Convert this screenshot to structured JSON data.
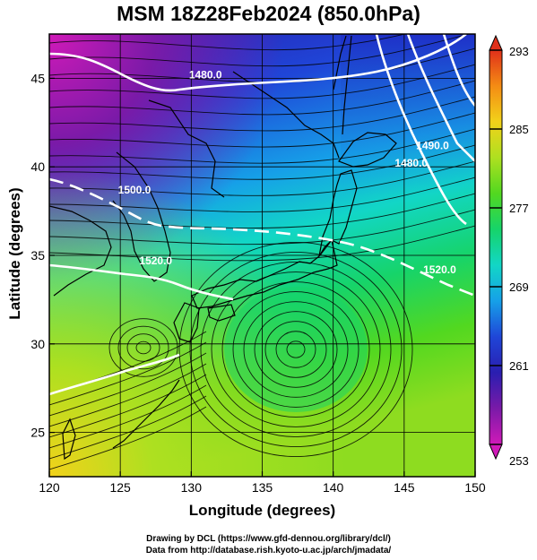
{
  "title": "MSM 18Z28Feb2024 (850.0hPa)",
  "x_axis": {
    "label": "Longitude (degrees)",
    "range": [
      120,
      150
    ],
    "ticks": [
      120,
      125,
      130,
      135,
      140,
      145,
      150
    ]
  },
  "y_axis": {
    "label": "Latitude  (degrees)",
    "range": [
      22.5,
      47.5
    ],
    "ticks": [
      25,
      30,
      35,
      40,
      45
    ]
  },
  "colorbar": {
    "range": [
      253,
      293
    ],
    "ticks": [
      253,
      261,
      269,
      277,
      285,
      293
    ],
    "colors": [
      "#d01ab8",
      "#7a1aa8",
      "#2a1eb0",
      "#1f46d8",
      "#16a0e8",
      "#12d6c6",
      "#16d46a",
      "#52d820",
      "#aee020",
      "#f2d21a",
      "#f48c14",
      "#e0301a"
    ]
  },
  "contours": [
    {
      "label": "1480.0",
      "lon": 131.0,
      "lat": 45.0
    },
    {
      "label": "1480.0",
      "lon": 145.5,
      "lat": 40.0
    },
    {
      "label": "1490.0",
      "lon": 147.0,
      "lat": 41.0
    },
    {
      "label": "1500.0",
      "lon": 126.0,
      "lat": 38.5
    },
    {
      "label": "1520.0",
      "lon": 127.5,
      "lat": 34.5
    },
    {
      "label": "1520.0",
      "lon": 147.5,
      "lat": 34.0
    }
  ],
  "credits": {
    "line1": "Drawing by DCL (https://www.gfd-dennou.org/library/dcl/)",
    "line2": "Data from http://database.rish.kyoto-u.ac.jp/arch/jmadata/"
  }
}
